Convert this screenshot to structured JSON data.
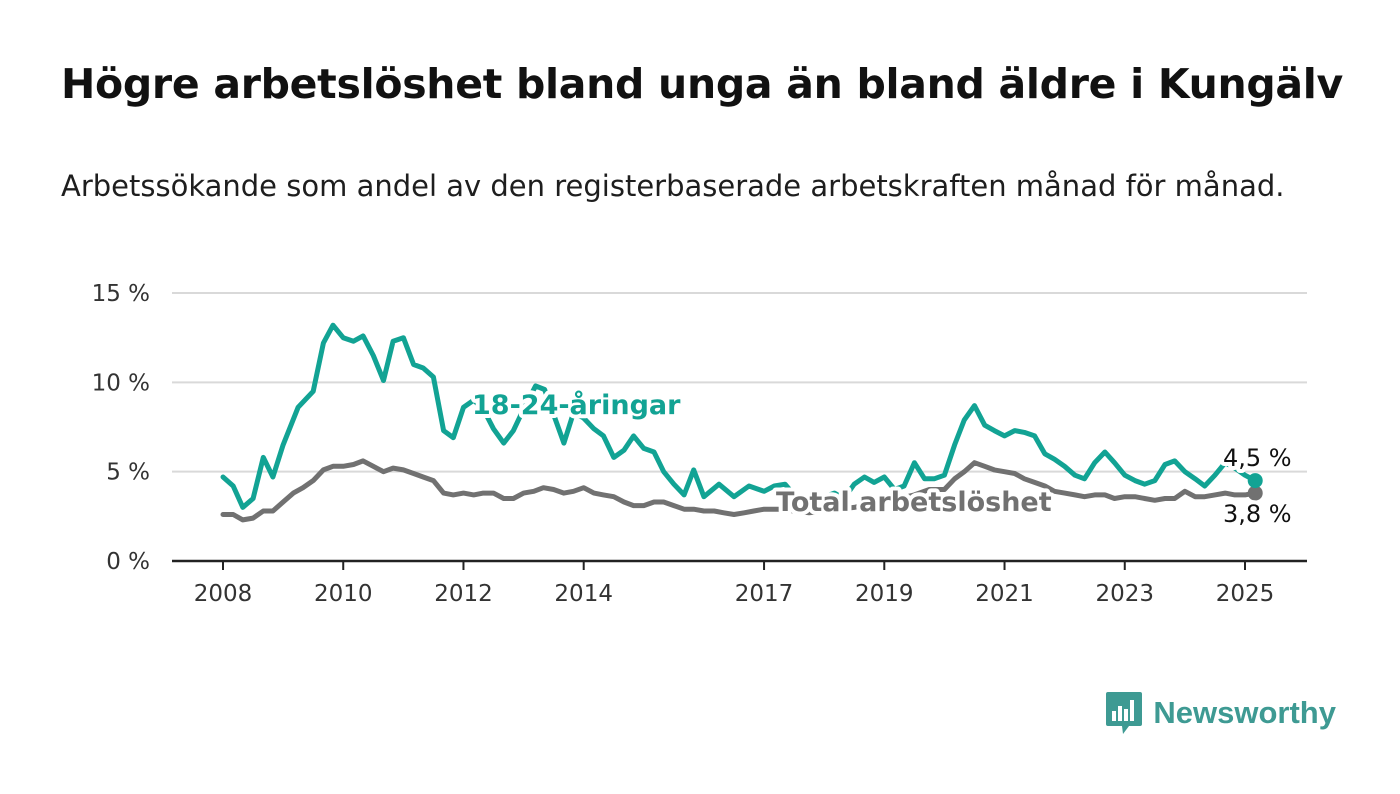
{
  "title": "Högre arbetslöshet bland unga än bland äldre i Kungälv",
  "subtitle": "Arbetssökande som andel av den registerbaserade arbetskraften månad för månad.",
  "brand": {
    "name": "Newsworthy",
    "color": "#3e9a93"
  },
  "chart_data": {
    "type": "line",
    "title": "Högre arbetslöshet bland unga än bland äldre i Kungälv",
    "subtitle": "Arbetssökande som andel av den registerbaserade arbetskraften månad för månad.",
    "xlabel": "",
    "ylabel": "",
    "ylim": [
      0,
      15
    ],
    "xlim": [
      2007.6,
      2026.0
    ],
    "yticks": [
      0,
      5,
      10,
      15
    ],
    "ytick_labels": [
      "0 %",
      "5 %",
      "10 %",
      "15 %"
    ],
    "xticks": [
      2008,
      2010,
      2012,
      2014,
      2017,
      2019,
      2021,
      2023,
      2025
    ],
    "xtick_labels": [
      "2008",
      "2010",
      "2012",
      "2014",
      "2017",
      "2019",
      "2021",
      "2023",
      "2025"
    ],
    "grid": true,
    "series": [
      {
        "name": "18-24-åringar",
        "color": "#12a394",
        "end_label": "4,5 %",
        "end_value": 4.5,
        "points": [
          [
            2008.0,
            4.7
          ],
          [
            2008.17,
            4.2
          ],
          [
            2008.33,
            3.0
          ],
          [
            2008.5,
            3.5
          ],
          [
            2008.67,
            5.8
          ],
          [
            2008.83,
            4.7
          ],
          [
            2009.0,
            6.5
          ],
          [
            2009.25,
            8.6
          ],
          [
            2009.5,
            9.5
          ],
          [
            2009.67,
            12.2
          ],
          [
            2009.83,
            13.2
          ],
          [
            2010.0,
            12.5
          ],
          [
            2010.17,
            12.3
          ],
          [
            2010.33,
            12.6
          ],
          [
            2010.5,
            11.5
          ],
          [
            2010.67,
            10.1
          ],
          [
            2010.83,
            12.3
          ],
          [
            2011.0,
            12.5
          ],
          [
            2011.17,
            11.0
          ],
          [
            2011.33,
            10.8
          ],
          [
            2011.5,
            10.3
          ],
          [
            2011.67,
            7.3
          ],
          [
            2011.83,
            6.9
          ],
          [
            2012.0,
            8.6
          ],
          [
            2012.17,
            9.0
          ],
          [
            2012.33,
            8.5
          ],
          [
            2012.5,
            7.4
          ],
          [
            2012.67,
            6.6
          ],
          [
            2012.83,
            7.3
          ],
          [
            2013.0,
            8.5
          ],
          [
            2013.2,
            9.8
          ],
          [
            2013.35,
            9.6
          ],
          [
            2013.5,
            8.2
          ],
          [
            2013.67,
            6.6
          ],
          [
            2013.83,
            8.3
          ],
          [
            2014.0,
            8.0
          ],
          [
            2014.17,
            7.4
          ],
          [
            2014.33,
            7.0
          ],
          [
            2014.5,
            5.8
          ],
          [
            2014.67,
            6.2
          ],
          [
            2014.83,
            7.0
          ],
          [
            2015.0,
            6.3
          ],
          [
            2015.17,
            6.1
          ],
          [
            2015.33,
            5.0
          ],
          [
            2015.5,
            4.3
          ],
          [
            2015.67,
            3.7
          ],
          [
            2015.83,
            5.1
          ],
          [
            2016.0,
            3.6
          ],
          [
            2016.25,
            4.3
          ],
          [
            2016.5,
            3.6
          ],
          [
            2016.75,
            4.2
          ],
          [
            2017.0,
            3.9
          ],
          [
            2017.17,
            4.2
          ],
          [
            2017.35,
            4.3
          ],
          [
            2017.5,
            3.7
          ],
          [
            2017.67,
            3.5
          ],
          [
            2017.83,
            3.8
          ],
          [
            2018.0,
            3.6
          ],
          [
            2018.17,
            3.8
          ],
          [
            2018.33,
            3.5
          ],
          [
            2018.5,
            4.3
          ],
          [
            2018.67,
            4.7
          ],
          [
            2018.83,
            4.4
          ],
          [
            2019.0,
            4.7
          ],
          [
            2019.17,
            4.0
          ],
          [
            2019.33,
            4.2
          ],
          [
            2019.5,
            5.5
          ],
          [
            2019.67,
            4.6
          ],
          [
            2019.83,
            4.6
          ],
          [
            2020.0,
            4.8
          ],
          [
            2020.17,
            6.5
          ],
          [
            2020.33,
            7.9
          ],
          [
            2020.5,
            8.7
          ],
          [
            2020.67,
            7.6
          ],
          [
            2020.83,
            7.3
          ],
          [
            2021.0,
            7.0
          ],
          [
            2021.17,
            7.3
          ],
          [
            2021.33,
            7.2
          ],
          [
            2021.5,
            7.0
          ],
          [
            2021.67,
            6.0
          ],
          [
            2021.83,
            5.7
          ],
          [
            2022.0,
            5.3
          ],
          [
            2022.17,
            4.8
          ],
          [
            2022.33,
            4.6
          ],
          [
            2022.5,
            5.5
          ],
          [
            2022.67,
            6.1
          ],
          [
            2022.83,
            5.5
          ],
          [
            2023.0,
            4.8
          ],
          [
            2023.17,
            4.5
          ],
          [
            2023.33,
            4.3
          ],
          [
            2023.5,
            4.5
          ],
          [
            2023.67,
            5.4
          ],
          [
            2023.83,
            5.6
          ],
          [
            2024.0,
            5.0
          ],
          [
            2024.17,
            4.6
          ],
          [
            2024.33,
            4.2
          ],
          [
            2024.5,
            4.8
          ],
          [
            2024.67,
            5.5
          ],
          [
            2024.83,
            5.2
          ],
          [
            2025.0,
            4.8
          ],
          [
            2025.17,
            4.5
          ]
        ]
      },
      {
        "name": "Total arbetslöshet",
        "color": "#717171",
        "end_label": "3,8 %",
        "end_value": 3.8,
        "points": [
          [
            2008.0,
            2.6
          ],
          [
            2008.17,
            2.6
          ],
          [
            2008.33,
            2.3
          ],
          [
            2008.5,
            2.4
          ],
          [
            2008.67,
            2.8
          ],
          [
            2008.83,
            2.8
          ],
          [
            2009.0,
            3.3
          ],
          [
            2009.17,
            3.8
          ],
          [
            2009.33,
            4.1
          ],
          [
            2009.5,
            4.5
          ],
          [
            2009.67,
            5.1
          ],
          [
            2009.83,
            5.3
          ],
          [
            2010.0,
            5.3
          ],
          [
            2010.17,
            5.4
          ],
          [
            2010.33,
            5.6
          ],
          [
            2010.5,
            5.3
          ],
          [
            2010.67,
            5.0
          ],
          [
            2010.83,
            5.2
          ],
          [
            2011.0,
            5.1
          ],
          [
            2011.17,
            4.9
          ],
          [
            2011.33,
            4.7
          ],
          [
            2011.5,
            4.5
          ],
          [
            2011.67,
            3.8
          ],
          [
            2011.83,
            3.7
          ],
          [
            2012.0,
            3.8
          ],
          [
            2012.17,
            3.7
          ],
          [
            2012.33,
            3.8
          ],
          [
            2012.5,
            3.8
          ],
          [
            2012.67,
            3.5
          ],
          [
            2012.83,
            3.5
          ],
          [
            2013.0,
            3.8
          ],
          [
            2013.17,
            3.9
          ],
          [
            2013.33,
            4.1
          ],
          [
            2013.5,
            4.0
          ],
          [
            2013.67,
            3.8
          ],
          [
            2013.83,
            3.9
          ],
          [
            2014.0,
            4.1
          ],
          [
            2014.17,
            3.8
          ],
          [
            2014.33,
            3.7
          ],
          [
            2014.5,
            3.6
          ],
          [
            2014.67,
            3.3
          ],
          [
            2014.83,
            3.1
          ],
          [
            2015.0,
            3.1
          ],
          [
            2015.17,
            3.3
          ],
          [
            2015.33,
            3.3
          ],
          [
            2015.5,
            3.1
          ],
          [
            2015.67,
            2.9
          ],
          [
            2015.83,
            2.9
          ],
          [
            2016.0,
            2.8
          ],
          [
            2016.17,
            2.8
          ],
          [
            2016.33,
            2.7
          ],
          [
            2016.5,
            2.6
          ],
          [
            2016.67,
            2.7
          ],
          [
            2016.83,
            2.8
          ],
          [
            2017.0,
            2.9
          ],
          [
            2017.25,
            2.9
          ],
          [
            2017.5,
            2.8
          ],
          [
            2017.75,
            2.7
          ],
          [
            2018.0,
            2.8
          ],
          [
            2018.25,
            2.9
          ],
          [
            2018.5,
            3.0
          ],
          [
            2018.75,
            3.2
          ],
          [
            2019.0,
            3.4
          ],
          [
            2019.25,
            3.5
          ],
          [
            2019.5,
            3.7
          ],
          [
            2019.75,
            4.0
          ],
          [
            2020.0,
            4.0
          ],
          [
            2020.17,
            4.6
          ],
          [
            2020.33,
            5.0
          ],
          [
            2020.5,
            5.5
          ],
          [
            2020.67,
            5.3
          ],
          [
            2020.83,
            5.1
          ],
          [
            2021.0,
            5.0
          ],
          [
            2021.17,
            4.9
          ],
          [
            2021.33,
            4.6
          ],
          [
            2021.5,
            4.4
          ],
          [
            2021.67,
            4.2
          ],
          [
            2021.83,
            3.9
          ],
          [
            2022.0,
            3.8
          ],
          [
            2022.17,
            3.7
          ],
          [
            2022.33,
            3.6
          ],
          [
            2022.5,
            3.7
          ],
          [
            2022.67,
            3.7
          ],
          [
            2022.83,
            3.5
          ],
          [
            2023.0,
            3.6
          ],
          [
            2023.17,
            3.6
          ],
          [
            2023.33,
            3.5
          ],
          [
            2023.5,
            3.4
          ],
          [
            2023.67,
            3.5
          ],
          [
            2023.83,
            3.5
          ],
          [
            2024.0,
            3.9
          ],
          [
            2024.17,
            3.6
          ],
          [
            2024.33,
            3.6
          ],
          [
            2024.5,
            3.7
          ],
          [
            2024.67,
            3.8
          ],
          [
            2024.83,
            3.7
          ],
          [
            2025.0,
            3.7
          ],
          [
            2025.17,
            3.8
          ]
        ]
      }
    ]
  }
}
